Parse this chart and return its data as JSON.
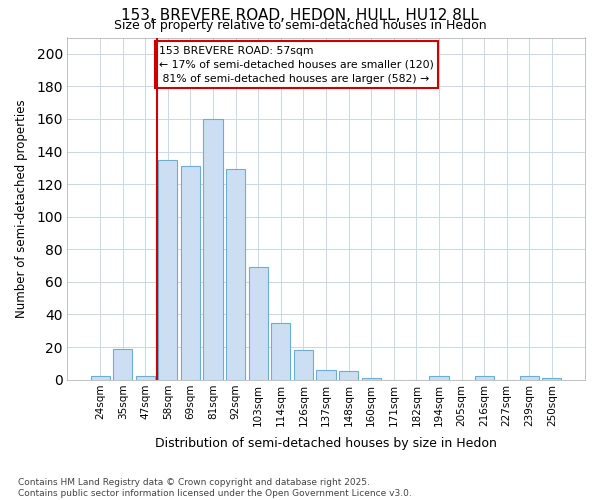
{
  "title1": "153, BREVERE ROAD, HEDON, HULL, HU12 8LL",
  "title2": "Size of property relative to semi-detached houses in Hedon",
  "xlabel": "Distribution of semi-detached houses by size in Hedon",
  "ylabel": "Number of semi-detached properties",
  "categories": [
    "24sqm",
    "35sqm",
    "47sqm",
    "58sqm",
    "69sqm",
    "81sqm",
    "92sqm",
    "103sqm",
    "114sqm",
    "126sqm",
    "137sqm",
    "148sqm",
    "160sqm",
    "171sqm",
    "182sqm",
    "194sqm",
    "205sqm",
    "216sqm",
    "227sqm",
    "239sqm",
    "250sqm"
  ],
  "values": [
    2,
    19,
    2,
    135,
    131,
    160,
    129,
    69,
    35,
    18,
    6,
    5,
    1,
    0,
    0,
    2,
    0,
    2,
    0,
    2,
    1
  ],
  "bar_color": "#ccdff2",
  "bar_edge_color": "#6aaed6",
  "vline_color": "#cc0000",
  "vline_x_index": 3,
  "annotation_line1": "153 BREVERE ROAD: 57sqm",
  "annotation_line2": "← 17% of semi-detached houses are smaller (120)",
  "annotation_line3": " 81% of semi-detached houses are larger (582) →",
  "ylim": [
    0,
    210
  ],
  "yticks": [
    0,
    20,
    40,
    60,
    80,
    100,
    120,
    140,
    160,
    180,
    200
  ],
  "background_color": "#ffffff",
  "plot_bg_color": "#ffffff",
  "grid_color": "#c8d8e8",
  "footnote": "Contains HM Land Registry data © Crown copyright and database right 2025.\nContains public sector information licensed under the Open Government Licence v3.0."
}
